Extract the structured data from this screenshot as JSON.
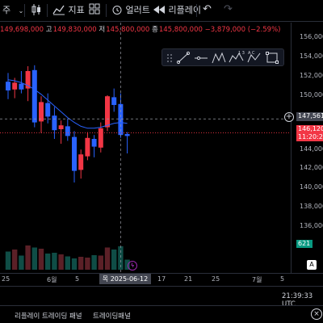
{
  "toolbar": {
    "interval_label": "주",
    "indicators_label": "지표",
    "alert_label": "얼러트",
    "replay_label": "리플레이"
  },
  "legend": {
    "open": "149,698,000",
    "high_label": "고",
    "high": "149,830,000",
    "low_label": "저",
    "low": "145,800,000",
    "close_label": "종",
    "close": "145,800,000",
    "change": "−3,879,000",
    "change_pct": "(−2.59%)"
  },
  "yaxis": {
    "ticks": [
      "156,000",
      "154,000",
      "152,000",
      "150,000",
      "147,561",
      "146,120",
      "11:20:27",
      "144,000",
      "142,000",
      "140,000",
      "138,000",
      "136,000",
      "621"
    ]
  },
  "xaxis": {
    "ticks": [
      "25",
      "6월",
      "5",
      "17",
      "21",
      "25",
      "7월",
      "5"
    ],
    "crosshair_date": "목 2025-06-12"
  },
  "status": {
    "time": "21:39:33 UTC"
  },
  "bottom_tabs": [
    "리플레이 트레이딩 패널",
    "트레이딩패널"
  ],
  "colors": {
    "up": "#f23645",
    "down": "#2962ff",
    "ma": "#2962ff",
    "crosshair_price_bg": "#434651",
    "last_price_bg": "#f23645"
  },
  "chart_data": {
    "type": "candlestick",
    "ylim": [
      134000,
      157000
    ],
    "candles": [
      {
        "o": 151400,
        "h": 152300,
        "l": 149600,
        "c": 150500,
        "v": 0.45
      },
      {
        "o": 150600,
        "h": 151800,
        "l": 149700,
        "c": 151300,
        "v": 0.5
      },
      {
        "o": 151200,
        "h": 152500,
        "l": 150200,
        "c": 150600,
        "v": 0.35
      },
      {
        "o": 150700,
        "h": 153000,
        "l": 149400,
        "c": 152500,
        "v": 0.6
      },
      {
        "o": 152600,
        "h": 153100,
        "l": 146700,
        "c": 147200,
        "v": 0.55
      },
      {
        "o": 147300,
        "h": 149900,
        "l": 146100,
        "c": 149300,
        "v": 0.52
      },
      {
        "o": 149200,
        "h": 150200,
        "l": 147100,
        "c": 147800,
        "v": 0.4
      },
      {
        "o": 147900,
        "h": 148800,
        "l": 145500,
        "c": 146400,
        "v": 0.42
      },
      {
        "o": 146500,
        "h": 147400,
        "l": 145000,
        "c": 146900,
        "v": 0.38
      },
      {
        "o": 146800,
        "h": 147600,
        "l": 145300,
        "c": 145800,
        "v": 0.33
      },
      {
        "o": 145700,
        "h": 146300,
        "l": 141000,
        "c": 142200,
        "v": 0.28
      },
      {
        "o": 142300,
        "h": 144400,
        "l": 141400,
        "c": 143900,
        "v": 0.32
      },
      {
        "o": 143700,
        "h": 146200,
        "l": 143300,
        "c": 145600,
        "v": 0.3
      },
      {
        "o": 145500,
        "h": 145900,
        "l": 143600,
        "c": 144700,
        "v": 0.36
      },
      {
        "o": 144600,
        "h": 147200,
        "l": 144100,
        "c": 146600,
        "v": 0.35
      },
      {
        "o": 146700,
        "h": 150000,
        "l": 146300,
        "c": 149900,
        "v": 0.55
      },
      {
        "o": 149800,
        "h": 150700,
        "l": 148300,
        "c": 149000,
        "v": 0.5
      },
      {
        "o": 149100,
        "h": 150200,
        "l": 145600,
        "c": 145900,
        "v": 0.58
      },
      {
        "o": 146000,
        "h": 146200,
        "l": 144000,
        "c": 145800,
        "v": 0.25
      }
    ],
    "ma": [
      151600,
      151500,
      151300,
      151000,
      150600,
      150100,
      149500,
      148900,
      148300,
      147700,
      147200,
      146800,
      146600,
      146600,
      146700,
      146900,
      147100,
      147200,
      147100
    ]
  }
}
